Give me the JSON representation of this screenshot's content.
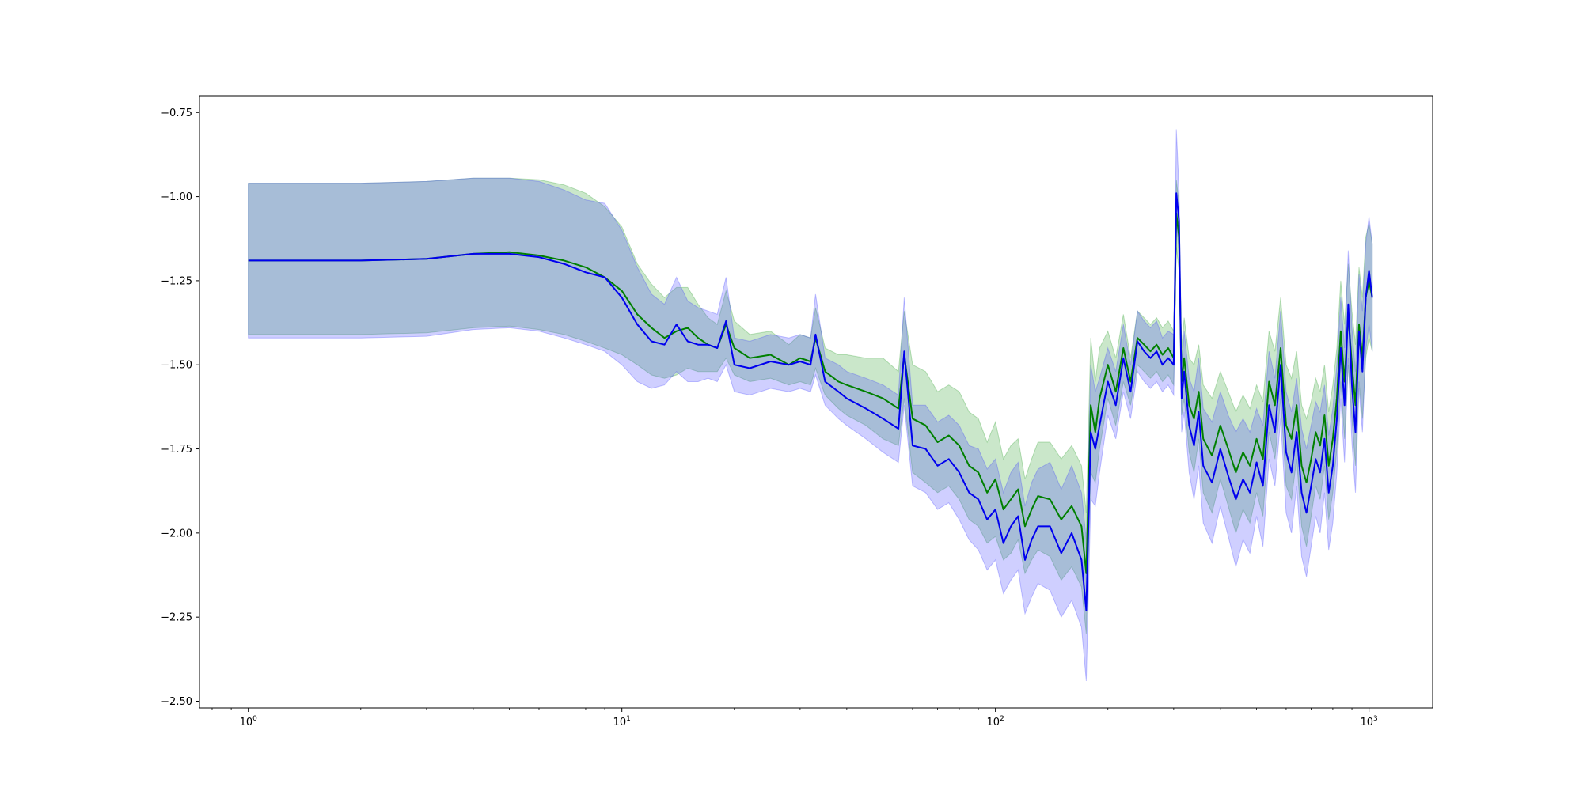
{
  "chart_data": {
    "type": "line",
    "title": "",
    "xlabel": "",
    "ylabel": "",
    "xscale": "log",
    "xlim": [
      0.74,
      1480
    ],
    "ylim": [
      -2.52,
      -0.7
    ],
    "grid": false,
    "legend": "none",
    "x_ticks": [
      {
        "value": 1,
        "base": "10",
        "exp": "0"
      },
      {
        "value": 10,
        "base": "10",
        "exp": "1"
      },
      {
        "value": 100,
        "base": "10",
        "exp": "2"
      },
      {
        "value": 1000,
        "base": "10",
        "exp": "3"
      }
    ],
    "y_ticks": [
      {
        "value": -0.75,
        "label": "−0.75"
      },
      {
        "value": -1.0,
        "label": "−1.00"
      },
      {
        "value": -1.25,
        "label": "−1.25"
      },
      {
        "value": -1.5,
        "label": "−1.50"
      },
      {
        "value": -1.75,
        "label": "−1.75"
      },
      {
        "value": -2.0,
        "label": "−2.00"
      },
      {
        "value": -2.25,
        "label": "−2.25"
      },
      {
        "value": -2.5,
        "label": "−2.50"
      }
    ],
    "series": [
      {
        "color": "#008000",
        "band_color": "#2ca02c",
        "band_opacity": 0.25,
        "x": [
          1,
          2,
          3,
          4,
          5,
          6,
          7,
          8,
          9,
          10,
          11,
          12,
          13,
          14,
          15,
          16,
          17,
          18,
          19,
          20,
          22,
          25,
          28,
          30,
          32,
          33,
          35,
          38,
          40,
          45,
          50,
          55,
          57,
          60,
          65,
          70,
          75,
          80,
          85,
          90,
          95,
          100,
          105,
          110,
          115,
          120,
          125,
          130,
          140,
          150,
          160,
          170,
          175,
          180,
          185,
          190,
          200,
          210,
          220,
          230,
          240,
          250,
          260,
          270,
          280,
          290,
          300,
          305,
          310,
          315,
          320,
          330,
          340,
          350,
          360,
          380,
          400,
          420,
          440,
          460,
          480,
          500,
          520,
          540,
          560,
          580,
          600,
          620,
          640,
          660,
          680,
          700,
          720,
          740,
          760,
          780,
          800,
          820,
          840,
          860,
          880,
          900,
          920,
          940,
          960,
          980,
          1000,
          1020
        ],
        "y": [
          -1.19,
          -1.19,
          -1.185,
          -1.17,
          -1.165,
          -1.175,
          -1.19,
          -1.21,
          -1.24,
          -1.28,
          -1.35,
          -1.39,
          -1.42,
          -1.4,
          -1.39,
          -1.42,
          -1.44,
          -1.45,
          -1.38,
          -1.45,
          -1.48,
          -1.47,
          -1.5,
          -1.48,
          -1.49,
          -1.42,
          -1.52,
          -1.55,
          -1.56,
          -1.58,
          -1.6,
          -1.63,
          -1.47,
          -1.66,
          -1.68,
          -1.73,
          -1.71,
          -1.74,
          -1.8,
          -1.82,
          -1.88,
          -1.84,
          -1.93,
          -1.9,
          -1.87,
          -1.98,
          -1.93,
          -1.89,
          -1.9,
          -1.96,
          -1.92,
          -1.98,
          -2.12,
          -1.62,
          -1.7,
          -1.6,
          -1.5,
          -1.58,
          -1.45,
          -1.55,
          -1.42,
          -1.44,
          -1.46,
          -1.44,
          -1.47,
          -1.45,
          -1.48,
          -1.05,
          -1.12,
          -1.55,
          -1.48,
          -1.62,
          -1.66,
          -1.58,
          -1.72,
          -1.77,
          -1.68,
          -1.75,
          -1.82,
          -1.76,
          -1.8,
          -1.72,
          -1.78,
          -1.55,
          -1.62,
          -1.45,
          -1.68,
          -1.72,
          -1.62,
          -1.8,
          -1.85,
          -1.78,
          -1.7,
          -1.74,
          -1.65,
          -1.8,
          -1.72,
          -1.6,
          -1.4,
          -1.55,
          -1.35,
          -1.5,
          -1.62,
          -1.38,
          -1.48,
          -1.3,
          -1.25,
          -1.3
        ],
        "lower": [
          -1.41,
          -1.41,
          -1.405,
          -1.39,
          -1.385,
          -1.395,
          -1.41,
          -1.43,
          -1.45,
          -1.47,
          -1.5,
          -1.53,
          -1.54,
          -1.53,
          -1.51,
          -1.52,
          -1.52,
          -1.52,
          -1.48,
          -1.53,
          -1.55,
          -1.54,
          -1.56,
          -1.55,
          -1.56,
          -1.51,
          -1.59,
          -1.63,
          -1.65,
          -1.68,
          -1.72,
          -1.74,
          -1.6,
          -1.82,
          -1.85,
          -1.88,
          -1.86,
          -1.9,
          -1.96,
          -1.98,
          -2.03,
          -2.01,
          -2.08,
          -2.06,
          -2.02,
          -2.12,
          -2.08,
          -2.05,
          -2.07,
          -2.14,
          -2.1,
          -2.16,
          -2.3,
          -1.82,
          -1.85,
          -1.75,
          -1.6,
          -1.68,
          -1.55,
          -1.62,
          -1.5,
          -1.52,
          -1.54,
          -1.52,
          -1.55,
          -1.53,
          -1.56,
          -1.15,
          -1.22,
          -1.65,
          -1.6,
          -1.76,
          -1.82,
          -1.72,
          -1.88,
          -1.94,
          -1.84,
          -1.92,
          -2.0,
          -1.93,
          -1.97,
          -1.88,
          -1.95,
          -1.7,
          -1.78,
          -1.6,
          -1.86,
          -1.9,
          -1.78,
          -1.98,
          -2.04,
          -1.95,
          -1.86,
          -1.9,
          -1.8,
          -1.96,
          -1.88,
          -1.75,
          -1.55,
          -1.72,
          -1.5,
          -1.66,
          -1.8,
          -1.55,
          -1.66,
          -1.48,
          -1.42,
          -1.46
        ],
        "upper": [
          -0.96,
          -0.96,
          -0.955,
          -0.945,
          -0.945,
          -0.95,
          -0.965,
          -0.99,
          -1.03,
          -1.09,
          -1.2,
          -1.26,
          -1.3,
          -1.27,
          -1.27,
          -1.32,
          -1.36,
          -1.38,
          -1.28,
          -1.37,
          -1.41,
          -1.4,
          -1.44,
          -1.41,
          -1.42,
          -1.33,
          -1.45,
          -1.47,
          -1.47,
          -1.48,
          -1.48,
          -1.52,
          -1.34,
          -1.5,
          -1.52,
          -1.58,
          -1.56,
          -1.58,
          -1.64,
          -1.66,
          -1.73,
          -1.67,
          -1.78,
          -1.74,
          -1.72,
          -1.84,
          -1.78,
          -1.73,
          -1.73,
          -1.78,
          -1.74,
          -1.8,
          -1.94,
          -1.42,
          -1.55,
          -1.45,
          -1.4,
          -1.48,
          -1.35,
          -1.48,
          -1.34,
          -1.36,
          -1.38,
          -1.36,
          -1.39,
          -1.37,
          -1.4,
          -0.95,
          -1.02,
          -1.45,
          -1.36,
          -1.48,
          -1.5,
          -1.44,
          -1.56,
          -1.6,
          -1.52,
          -1.58,
          -1.64,
          -1.59,
          -1.63,
          -1.56,
          -1.61,
          -1.4,
          -1.46,
          -1.3,
          -1.5,
          -1.54,
          -1.46,
          -1.62,
          -1.66,
          -1.61,
          -1.54,
          -1.58,
          -1.5,
          -1.64,
          -1.56,
          -1.45,
          -1.25,
          -1.38,
          -1.2,
          -1.34,
          -1.44,
          -1.21,
          -1.3,
          -1.12,
          -1.08,
          -1.14
        ]
      },
      {
        "color": "#0000ee",
        "band_color": "#4040ff",
        "band_opacity": 0.25,
        "x": [
          1,
          2,
          3,
          4,
          5,
          6,
          7,
          8,
          9,
          10,
          11,
          12,
          13,
          14,
          15,
          16,
          17,
          18,
          19,
          20,
          22,
          25,
          28,
          30,
          32,
          33,
          35,
          38,
          40,
          45,
          50,
          55,
          57,
          60,
          65,
          70,
          75,
          80,
          85,
          90,
          95,
          100,
          105,
          110,
          115,
          120,
          125,
          130,
          140,
          150,
          160,
          170,
          175,
          180,
          185,
          190,
          200,
          210,
          220,
          230,
          240,
          250,
          260,
          270,
          280,
          290,
          300,
          305,
          310,
          315,
          320,
          330,
          340,
          350,
          360,
          380,
          400,
          420,
          440,
          460,
          480,
          500,
          520,
          540,
          560,
          580,
          600,
          620,
          640,
          660,
          680,
          700,
          720,
          740,
          760,
          780,
          800,
          820,
          840,
          860,
          880,
          900,
          920,
          940,
          960,
          980,
          1000,
          1020
        ],
        "y": [
          -1.19,
          -1.19,
          -1.185,
          -1.17,
          -1.17,
          -1.18,
          -1.2,
          -1.225,
          -1.24,
          -1.3,
          -1.38,
          -1.43,
          -1.44,
          -1.38,
          -1.43,
          -1.44,
          -1.44,
          -1.45,
          -1.37,
          -1.5,
          -1.51,
          -1.49,
          -1.5,
          -1.49,
          -1.5,
          -1.41,
          -1.55,
          -1.58,
          -1.6,
          -1.63,
          -1.66,
          -1.69,
          -1.46,
          -1.74,
          -1.75,
          -1.8,
          -1.78,
          -1.82,
          -1.88,
          -1.9,
          -1.96,
          -1.93,
          -2.03,
          -1.98,
          -1.95,
          -2.08,
          -2.02,
          -1.98,
          -1.98,
          -2.06,
          -2.0,
          -2.08,
          -2.23,
          -1.7,
          -1.75,
          -1.68,
          -1.55,
          -1.62,
          -1.48,
          -1.58,
          -1.43,
          -1.46,
          -1.48,
          -1.46,
          -1.5,
          -1.48,
          -1.5,
          -0.99,
          -1.07,
          -1.6,
          -1.52,
          -1.68,
          -1.74,
          -1.64,
          -1.8,
          -1.85,
          -1.75,
          -1.83,
          -1.9,
          -1.84,
          -1.88,
          -1.79,
          -1.86,
          -1.62,
          -1.7,
          -1.5,
          -1.76,
          -1.82,
          -1.7,
          -1.88,
          -1.94,
          -1.86,
          -1.78,
          -1.82,
          -1.72,
          -1.88,
          -1.8,
          -1.66,
          -1.45,
          -1.62,
          -1.32,
          -1.56,
          -1.7,
          -1.4,
          -1.52,
          -1.3,
          -1.22,
          -1.3
        ],
        "lower": [
          -1.42,
          -1.42,
          -1.415,
          -1.395,
          -1.39,
          -1.4,
          -1.42,
          -1.44,
          -1.46,
          -1.5,
          -1.55,
          -1.57,
          -1.56,
          -1.52,
          -1.55,
          -1.55,
          -1.54,
          -1.55,
          -1.5,
          -1.58,
          -1.59,
          -1.57,
          -1.58,
          -1.57,
          -1.58,
          -1.53,
          -1.62,
          -1.66,
          -1.68,
          -1.72,
          -1.76,
          -1.79,
          -1.62,
          -1.86,
          -1.88,
          -1.93,
          -1.91,
          -1.96,
          -2.02,
          -2.05,
          -2.11,
          -2.08,
          -2.18,
          -2.14,
          -2.11,
          -2.24,
          -2.19,
          -2.15,
          -2.17,
          -2.25,
          -2.2,
          -2.28,
          -2.44,
          -1.9,
          -1.92,
          -1.82,
          -1.65,
          -1.72,
          -1.58,
          -1.66,
          -1.52,
          -1.55,
          -1.57,
          -1.55,
          -1.58,
          -1.56,
          -1.59,
          -1.08,
          -1.16,
          -1.7,
          -1.64,
          -1.82,
          -1.9,
          -1.8,
          -1.97,
          -2.03,
          -1.92,
          -2.01,
          -2.1,
          -2.02,
          -2.06,
          -1.95,
          -2.04,
          -1.78,
          -1.86,
          -1.66,
          -1.94,
          -2.0,
          -1.86,
          -2.07,
          -2.13,
          -2.04,
          -1.95,
          -2.0,
          -1.88,
          -2.05,
          -1.97,
          -1.82,
          -1.6,
          -1.79,
          -1.48,
          -1.73,
          -1.88,
          -1.57,
          -1.7,
          -1.46,
          -1.38,
          -1.46
        ],
        "upper": [
          -0.96,
          -0.96,
          -0.955,
          -0.945,
          -0.945,
          -0.955,
          -0.98,
          -1.01,
          -1.02,
          -1.1,
          -1.21,
          -1.29,
          -1.32,
          -1.24,
          -1.31,
          -1.33,
          -1.34,
          -1.35,
          -1.24,
          -1.42,
          -1.43,
          -1.41,
          -1.42,
          -1.41,
          -1.42,
          -1.29,
          -1.48,
          -1.5,
          -1.52,
          -1.54,
          -1.56,
          -1.59,
          -1.3,
          -1.62,
          -1.62,
          -1.67,
          -1.65,
          -1.68,
          -1.74,
          -1.75,
          -1.81,
          -1.78,
          -1.88,
          -1.82,
          -1.79,
          -1.92,
          -1.85,
          -1.81,
          -1.79,
          -1.87,
          -1.8,
          -1.88,
          -2.02,
          -1.5,
          -1.58,
          -1.54,
          -1.45,
          -1.52,
          -1.38,
          -1.5,
          -1.34,
          -1.37,
          -1.39,
          -1.37,
          -1.42,
          -1.4,
          -1.41,
          -0.8,
          -0.98,
          -1.5,
          -1.4,
          -1.54,
          -1.58,
          -1.48,
          -1.63,
          -1.67,
          -1.58,
          -1.65,
          -1.7,
          -1.66,
          -1.7,
          -1.63,
          -1.68,
          -1.46,
          -1.54,
          -1.34,
          -1.58,
          -1.64,
          -1.54,
          -1.69,
          -1.75,
          -1.68,
          -1.61,
          -1.64,
          -1.56,
          -1.71,
          -1.63,
          -1.5,
          -1.3,
          -1.45,
          -1.16,
          -1.39,
          -1.52,
          -1.23,
          -1.34,
          -1.14,
          -1.06,
          -1.14
        ]
      }
    ]
  }
}
